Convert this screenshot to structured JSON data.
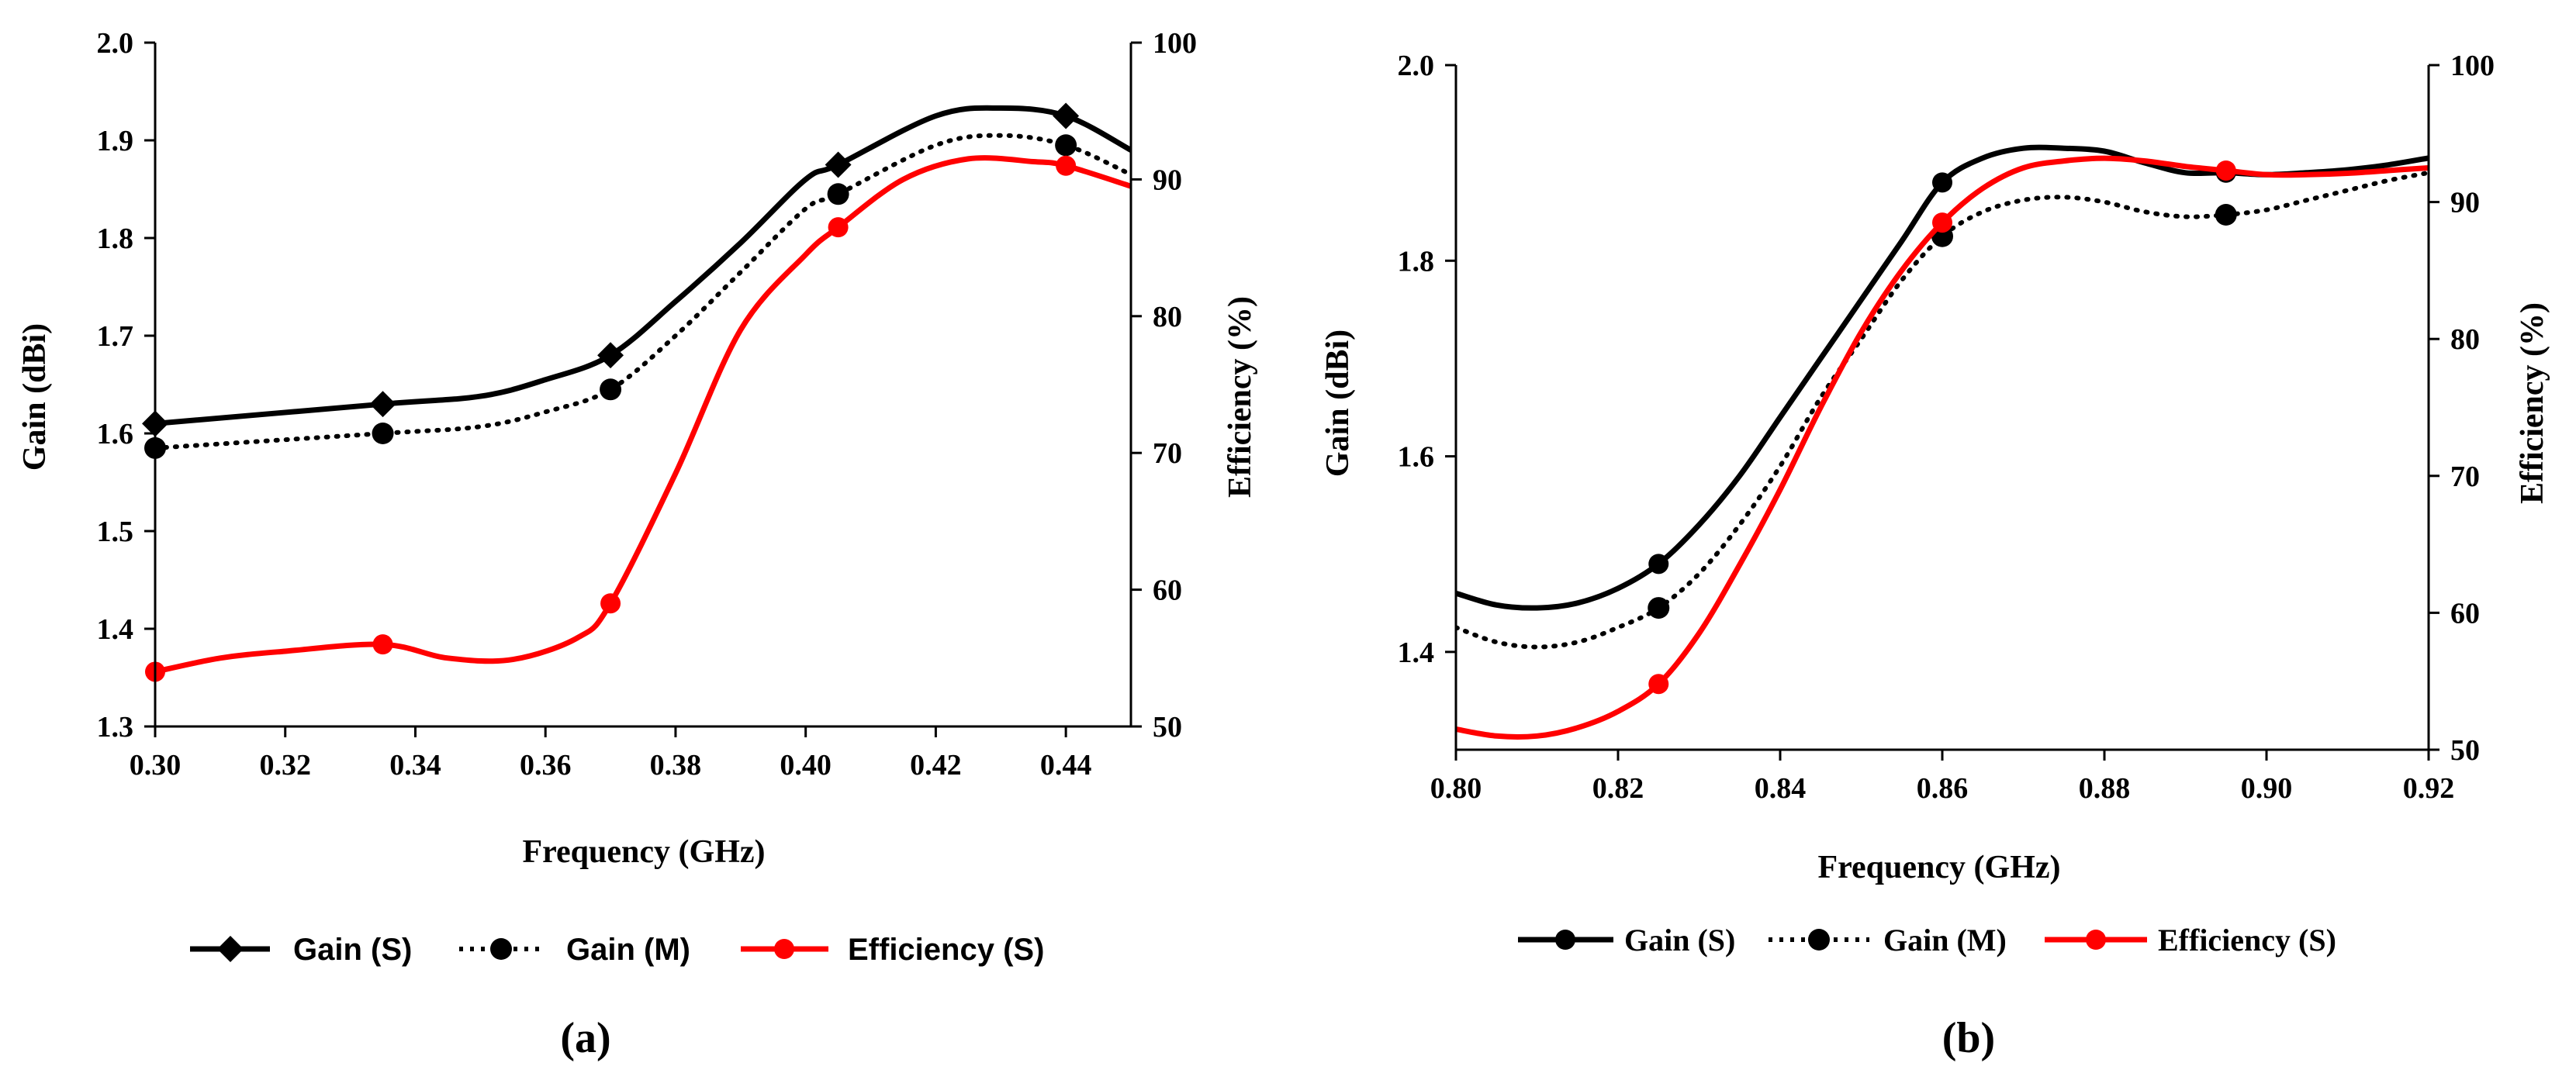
{
  "panels": [
    {
      "label": "(a)",
      "chart_data": {
        "type": "line",
        "title": "",
        "xlabel": "Frequency (GHz)",
        "ylabel": "Gain (dBi)",
        "y2label": "Efficiency (%)",
        "xlim": [
          0.3,
          0.45
        ],
        "ylim": [
          1.3,
          2.0
        ],
        "y2lim": [
          50,
          100
        ],
        "xticks": [
          0.3,
          0.32,
          0.34,
          0.36,
          0.38,
          0.4,
          0.42,
          0.44
        ],
        "xtick_labels": [
          "0.30",
          "0.32",
          "0.34",
          "0.36",
          "0.38",
          "0.40",
          "0.42",
          "0.44"
        ],
        "yticks": [
          1.3,
          1.4,
          1.5,
          1.6,
          1.7,
          1.8,
          1.9,
          2.0
        ],
        "ytick_labels": [
          "1.3",
          "1.4",
          "1.5",
          "1.6",
          "1.7",
          "1.8",
          "1.9",
          "2.0"
        ],
        "y2ticks": [
          50,
          60,
          70,
          80,
          90,
          100
        ],
        "y2tick_labels": [
          "50",
          "60",
          "70",
          "80",
          "90",
          "100"
        ],
        "grid": false,
        "legend_position": "bottom",
        "series": [
          {
            "name": "Gain (S)",
            "axis": "left",
            "color": "#000000",
            "style": "solid",
            "marker": "diamond",
            "x": [
              0.3,
              0.335,
              0.37,
              0.405,
              0.44
            ],
            "y": [
              1.61,
              1.63,
              1.68,
              1.875,
              1.925
            ],
            "curve_x": [
              0.3,
              0.335,
              0.35,
              0.36,
              0.37,
              0.38,
              0.39,
              0.4,
              0.405,
              0.42,
              0.43,
              0.44,
              0.45
            ],
            "curve_y": [
              1.61,
              1.63,
              1.638,
              1.655,
              1.68,
              1.735,
              1.795,
              1.86,
              1.875,
              1.925,
              1.933,
              1.925,
              1.89
            ]
          },
          {
            "name": "Gain (M)",
            "axis": "left",
            "color": "#000000",
            "style": "dotted",
            "marker": "circle",
            "x": [
              0.3,
              0.335,
              0.37,
              0.405,
              0.44
            ],
            "y": [
              1.585,
              1.6,
              1.645,
              1.845,
              1.895
            ],
            "curve_x": [
              0.3,
              0.335,
              0.35,
              0.36,
              0.37,
              0.38,
              0.39,
              0.4,
              0.405,
              0.42,
              0.43,
              0.44,
              0.45
            ],
            "curve_y": [
              1.585,
              1.6,
              1.607,
              1.622,
              1.645,
              1.7,
              1.765,
              1.83,
              1.845,
              1.895,
              1.905,
              1.895,
              1.865
            ]
          },
          {
            "name": "Efficiency (S)",
            "axis": "right",
            "color": "#ff0000",
            "style": "solid",
            "marker": "circle",
            "x": [
              0.3,
              0.335,
              0.37,
              0.405,
              0.44
            ],
            "y": [
              54.0,
              56.0,
              59.0,
              86.5,
              91.0
            ],
            "curve_x": [
              0.3,
              0.31,
              0.32,
              0.335,
              0.345,
              0.355,
              0.365,
              0.37,
              0.38,
              0.39,
              0.4,
              0.405,
              0.415,
              0.425,
              0.435,
              0.44,
              0.45
            ],
            "curve_y": [
              54.0,
              55.0,
              55.5,
              56.0,
              55.0,
              54.9,
              56.5,
              59.0,
              68.5,
              79.0,
              84.5,
              86.5,
              90.0,
              91.5,
              91.3,
              91.0,
              89.5
            ]
          }
        ]
      }
    },
    {
      "label": "(b)",
      "chart_data": {
        "type": "line",
        "title": "",
        "xlabel": "Frequency (GHz)",
        "ylabel": "Gain (dBi)",
        "y2label": "Efficiency (%)",
        "xlim": [
          0.8,
          0.92
        ],
        "ylim": [
          1.3,
          2.0
        ],
        "y2lim": [
          50,
          100
        ],
        "xticks": [
          0.8,
          0.82,
          0.84,
          0.86,
          0.88,
          0.9,
          0.92
        ],
        "xtick_labels": [
          "0.80",
          "0.82",
          "0.84",
          "0.86",
          "0.88",
          "0.90",
          "0.92"
        ],
        "yticks": [
          1.4,
          1.6,
          1.8,
          2.0
        ],
        "ytick_labels": [
          "1.4",
          "1.6",
          "1.8",
          "2.0"
        ],
        "y2ticks": [
          50,
          60,
          70,
          80,
          90,
          100
        ],
        "y2tick_labels": [
          "50",
          "60",
          "70",
          "80",
          "90",
          "100"
        ],
        "grid": false,
        "legend_position": "bottom",
        "series": [
          {
            "name": "Gain (S)",
            "axis": "left",
            "color": "#000000",
            "style": "solid",
            "marker": "circle",
            "x": [
              0.825,
              0.86,
              0.895
            ],
            "y": [
              1.49,
              1.88,
              1.89
            ],
            "curve_x": [
              0.8,
              0.805,
              0.81,
              0.815,
              0.82,
              0.825,
              0.83,
              0.835,
              0.84,
              0.845,
              0.85,
              0.855,
              0.86,
              0.865,
              0.87,
              0.875,
              0.88,
              0.885,
              0.89,
              0.895,
              0.9,
              0.905,
              0.91,
              0.915,
              0.92
            ],
            "curve_y": [
              1.46,
              1.448,
              1.445,
              1.45,
              1.465,
              1.49,
              1.53,
              1.58,
              1.64,
              1.7,
              1.76,
              1.82,
              1.88,
              1.905,
              1.915,
              1.915,
              1.912,
              1.9,
              1.89,
              1.89,
              1.888,
              1.89,
              1.893,
              1.898,
              1.905
            ]
          },
          {
            "name": "Gain (M)",
            "axis": "left",
            "color": "#000000",
            "style": "dotted",
            "marker": "circle",
            "x": [
              0.825,
              0.86,
              0.895
            ],
            "y": [
              1.445,
              1.825,
              1.847
            ],
            "curve_x": [
              0.8,
              0.805,
              0.81,
              0.815,
              0.82,
              0.825,
              0.83,
              0.835,
              0.84,
              0.845,
              0.85,
              0.855,
              0.86,
              0.865,
              0.87,
              0.875,
              0.88,
              0.885,
              0.89,
              0.895,
              0.9,
              0.905,
              0.91,
              0.915,
              0.92
            ],
            "curve_y": [
              1.425,
              1.41,
              1.405,
              1.41,
              1.425,
              1.445,
              1.48,
              1.53,
              1.59,
              1.66,
              1.72,
              1.78,
              1.825,
              1.85,
              1.862,
              1.865,
              1.86,
              1.85,
              1.845,
              1.847,
              1.852,
              1.862,
              1.872,
              1.882,
              1.89
            ]
          },
          {
            "name": "Efficiency (S)",
            "axis": "right",
            "color": "#ff0000",
            "style": "solid",
            "marker": "circle",
            "x": [
              0.825,
              0.86,
              0.895
            ],
            "y": [
              54.8,
              88.5,
              92.3
            ],
            "curve_x": [
              0.8,
              0.805,
              0.81,
              0.815,
              0.82,
              0.825,
              0.83,
              0.835,
              0.84,
              0.845,
              0.85,
              0.855,
              0.86,
              0.865,
              0.87,
              0.875,
              0.88,
              0.885,
              0.89,
              0.895,
              0.9,
              0.905,
              0.91,
              0.915,
              0.92
            ],
            "curve_y": [
              51.5,
              51.0,
              51.0,
              51.6,
              52.8,
              54.8,
              58.5,
              63.5,
              69.0,
              75.0,
              80.5,
              85.0,
              88.5,
              91.0,
              92.5,
              93.0,
              93.2,
              93.0,
              92.6,
              92.3,
              92.0,
              92.0,
              92.1,
              92.3,
              92.5
            ]
          }
        ]
      }
    }
  ]
}
